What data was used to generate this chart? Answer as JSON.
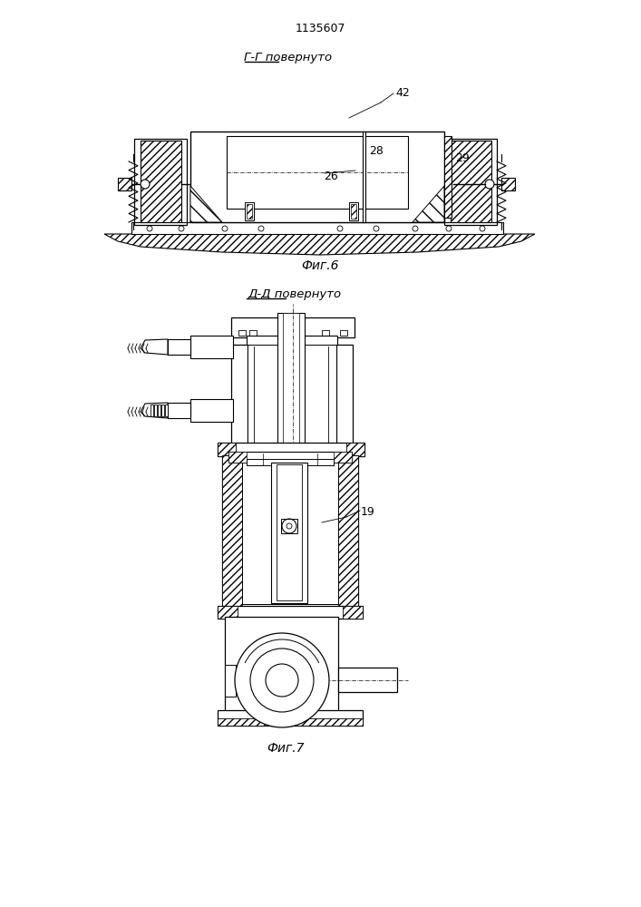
{
  "patent_number": "1135607",
  "fig6_title": "Г-Г повернуто",
  "fig6_caption": "Фиг.6",
  "fig7_title": "Д-Д повернуто",
  "fig7_caption": "Фиг.7",
  "label_42": "42",
  "label_28": "28",
  "label_29": "29",
  "label_26": "26",
  "label_19": "19",
  "bg_color": "#ffffff",
  "line_color": "#000000",
  "fig_width": 7.07,
  "fig_height": 10.0,
  "dpi": 100
}
